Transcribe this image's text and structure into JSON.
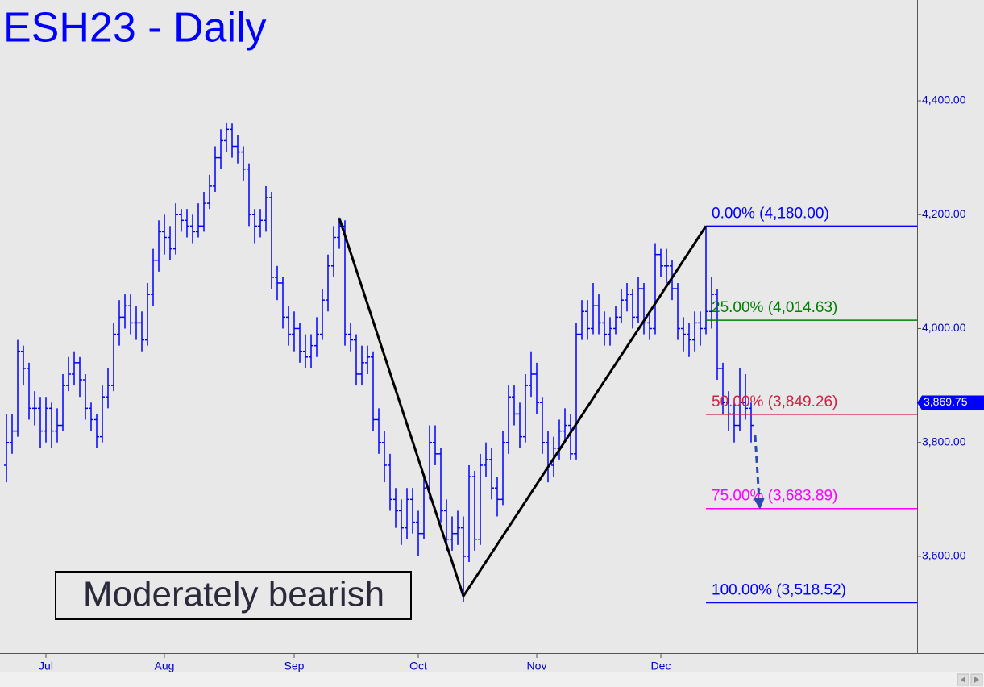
{
  "chart_data": {
    "type": "ohlc",
    "title": "ESH23 - Daily",
    "annotation": "Moderately bearish",
    "color": "#0000ff",
    "open": [
      3760,
      3800,
      3820,
      3960,
      3930,
      3860,
      3860,
      3820,
      3860,
      3820,
      3830,
      3900,
      3920,
      3940,
      3910,
      3860,
      3840,
      3810,
      3880,
      3900,
      3990,
      4020,
      4040,
      4010,
      4010,
      3980,
      4060,
      4120,
      4170,
      4160,
      4140,
      4200,
      4190,
      4180,
      4170,
      4180,
      4220,
      4250,
      4300,
      4330,
      4350,
      4320,
      4310,
      4280,
      4200,
      4180,
      4190,
      4230,
      4090,
      4080,
      4020,
      3990,
      4000,
      3960,
      3950,
      3970,
      3990,
      4050,
      4110,
      4160,
      4180,
      3990,
      3980,
      3920,
      3940,
      3950,
      3840,
      3800,
      3760,
      3700,
      3680,
      3650,
      3700,
      3660,
      3640,
      3720,
      3800,
      3780,
      3680,
      3630,
      3640,
      3650,
      3600,
      3740,
      3630,
      3760,
      3770,
      3720,
      3700,
      3800,
      3880,
      3850,
      3810,
      3900,
      3920,
      3870,
      3800,
      3760,
      3790,
      3820,
      3830,
      3780,
      3990,
      4030,
      4000,
      4040,
      4010,
      3990,
      4000,
      4020,
      4050,
      4060,
      4020,
      4070,
      4010,
      4000,
      4130,
      4110,
      4110,
      4070,
      4000,
      3990,
      3980,
      4010,
      4000,
      4030,
      4060,
      3930,
      3870,
      3850,
      3830,
      3870,
      3860
    ],
    "high": [
      3850,
      3850,
      3980,
      3970,
      3940,
      3890,
      3880,
      3880,
      3870,
      3860,
      3920,
      3950,
      3960,
      3950,
      3920,
      3870,
      3850,
      3900,
      3930,
      4010,
      4050,
      4060,
      4060,
      4040,
      4030,
      4080,
      4140,
      4190,
      4200,
      4180,
      4220,
      4210,
      4210,
      4200,
      4220,
      4240,
      4270,
      4320,
      4350,
      4362,
      4360,
      4340,
      4320,
      4290,
      4210,
      4210,
      4250,
      4240,
      4110,
      4090,
      4040,
      4030,
      4010,
      3990,
      3990,
      4020,
      4070,
      4130,
      4180,
      4195,
      4190,
      4010,
      3990,
      3970,
      3970,
      3960,
      3860,
      3820,
      3780,
      3720,
      3700,
      3720,
      3720,
      3680,
      3740,
      3830,
      3830,
      3790,
      3700,
      3670,
      3680,
      3670,
      3760,
      3750,
      3780,
      3800,
      3790,
      3740,
      3820,
      3900,
      3900,
      3870,
      3920,
      3960,
      3940,
      3880,
      3820,
      3810,
      3840,
      3860,
      3850,
      4010,
      4050,
      4050,
      4080,
      4060,
      4030,
      4020,
      4040,
      4070,
      4080,
      4070,
      4090,
      4080,
      4030,
      4150,
      4140,
      4140,
      4120,
      4080,
      4020,
      4010,
      4030,
      4030,
      4180,
      4090,
      4070,
      3940,
      3890,
      3870,
      3930,
      3920,
      3870
    ],
    "low": [
      3730,
      3780,
      3810,
      3900,
      3840,
      3830,
      3790,
      3800,
      3790,
      3800,
      3820,
      3890,
      3900,
      3880,
      3840,
      3820,
      3790,
      3800,
      3860,
      3890,
      3970,
      4000,
      3990,
      3980,
      3960,
      3970,
      4040,
      4100,
      4130,
      4120,
      4130,
      4170,
      4160,
      4150,
      4160,
      4170,
      4210,
      4240,
      4280,
      4310,
      4300,
      4290,
      4260,
      4180,
      4150,
      4160,
      4170,
      4070,
      4050,
      4000,
      3970,
      3960,
      3940,
      3930,
      3930,
      3950,
      3980,
      4030,
      4090,
      4140,
      3970,
      3960,
      3900,
      3900,
      3920,
      3820,
      3780,
      3730,
      3680,
      3650,
      3620,
      3630,
      3640,
      3600,
      3630,
      3700,
      3760,
      3660,
      3610,
      3610,
      3620,
      3520,
      3590,
      3610,
      3620,
      3740,
      3700,
      3670,
      3690,
      3780,
      3830,
      3790,
      3800,
      3880,
      3850,
      3780,
      3730,
      3740,
      3770,
      3800,
      3770,
      3770,
      3980,
      3980,
      3990,
      3990,
      3970,
      3970,
      3990,
      4010,
      4030,
      4000,
      4010,
      3990,
      3980,
      3990,
      4090,
      4080,
      4050,
      3980,
      3960,
      3950,
      3960,
      3970,
      3990,
      4000,
      3910,
      3850,
      3820,
      3800,
      3820,
      3840,
      3800
    ],
    "close": [
      3800,
      3820,
      3960,
      3930,
      3860,
      3860,
      3820,
      3860,
      3820,
      3830,
      3900,
      3920,
      3940,
      3910,
      3860,
      3840,
      3810,
      3880,
      3900,
      3990,
      4020,
      4040,
      4010,
      4010,
      3980,
      4060,
      4120,
      4170,
      4160,
      4140,
      4200,
      4190,
      4180,
      4170,
      4180,
      4220,
      4250,
      4300,
      4330,
      4350,
      4320,
      4310,
      4280,
      4200,
      4180,
      4190,
      4230,
      4090,
      4080,
      4020,
      3990,
      4000,
      3960,
      3950,
      3970,
      3990,
      4050,
      4110,
      4160,
      4180,
      3990,
      3980,
      3920,
      3940,
      3950,
      3840,
      3800,
      3760,
      3700,
      3680,
      3650,
      3700,
      3660,
      3640,
      3720,
      3800,
      3780,
      3680,
      3630,
      3640,
      3650,
      3600,
      3740,
      3630,
      3760,
      3770,
      3720,
      3700,
      3800,
      3880,
      3850,
      3810,
      3900,
      3920,
      3870,
      3800,
      3760,
      3790,
      3820,
      3830,
      3780,
      3990,
      4030,
      4000,
      4040,
      4010,
      3990,
      4000,
      4020,
      4050,
      4060,
      4020,
      4070,
      4010,
      4000,
      4130,
      4110,
      4110,
      4070,
      4000,
      3990,
      3980,
      4010,
      4000,
      4030,
      4060,
      3930,
      3870,
      3850,
      3830,
      3870,
      3860,
      3830
    ],
    "xlim": [
      -1,
      161
    ],
    "xticks": [
      {
        "value": 7,
        "label": "Jul"
      },
      {
        "value": 28,
        "label": "Aug"
      },
      {
        "value": 51,
        "label": "Sep"
      },
      {
        "value": 73,
        "label": "Oct"
      },
      {
        "value": 94,
        "label": "Nov"
      },
      {
        "value": 116,
        "label": "Dec"
      }
    ],
    "ylim": [
      3430,
      4577
    ],
    "yticks": [
      {
        "value": 3600,
        "label": "3,600.00"
      },
      {
        "value": 3800,
        "label": "3,800.00"
      },
      {
        "value": 4000,
        "label": "4,000.00"
      },
      {
        "value": 4200,
        "label": "4,200.00"
      },
      {
        "value": 4400,
        "label": "4,400.00"
      }
    ],
    "pattern_line": {
      "x": [
        59,
        81,
        124
      ],
      "y": [
        4194,
        3530,
        4180
      ],
      "color": "#000000"
    },
    "levels": [
      {
        "label": "0.00% (4,180.00)",
        "value": 4180,
        "color": "#0000ff"
      },
      {
        "label": "25.00% (4,014.63)",
        "value": 4014.63,
        "color": "#008000"
      },
      {
        "label": "50.00% (3,849.26)",
        "value": 3849.26,
        "color": "#cc2244"
      },
      {
        "label": "75.00% (3,683.89)",
        "value": 3683.89,
        "color": "#ff00ff"
      },
      {
        "label": "100.00% (3,518.52)",
        "value": 3518.52,
        "color": "#0000ff"
      }
    ],
    "last_price": {
      "value": 3869.75,
      "label": "3,869.75"
    }
  }
}
